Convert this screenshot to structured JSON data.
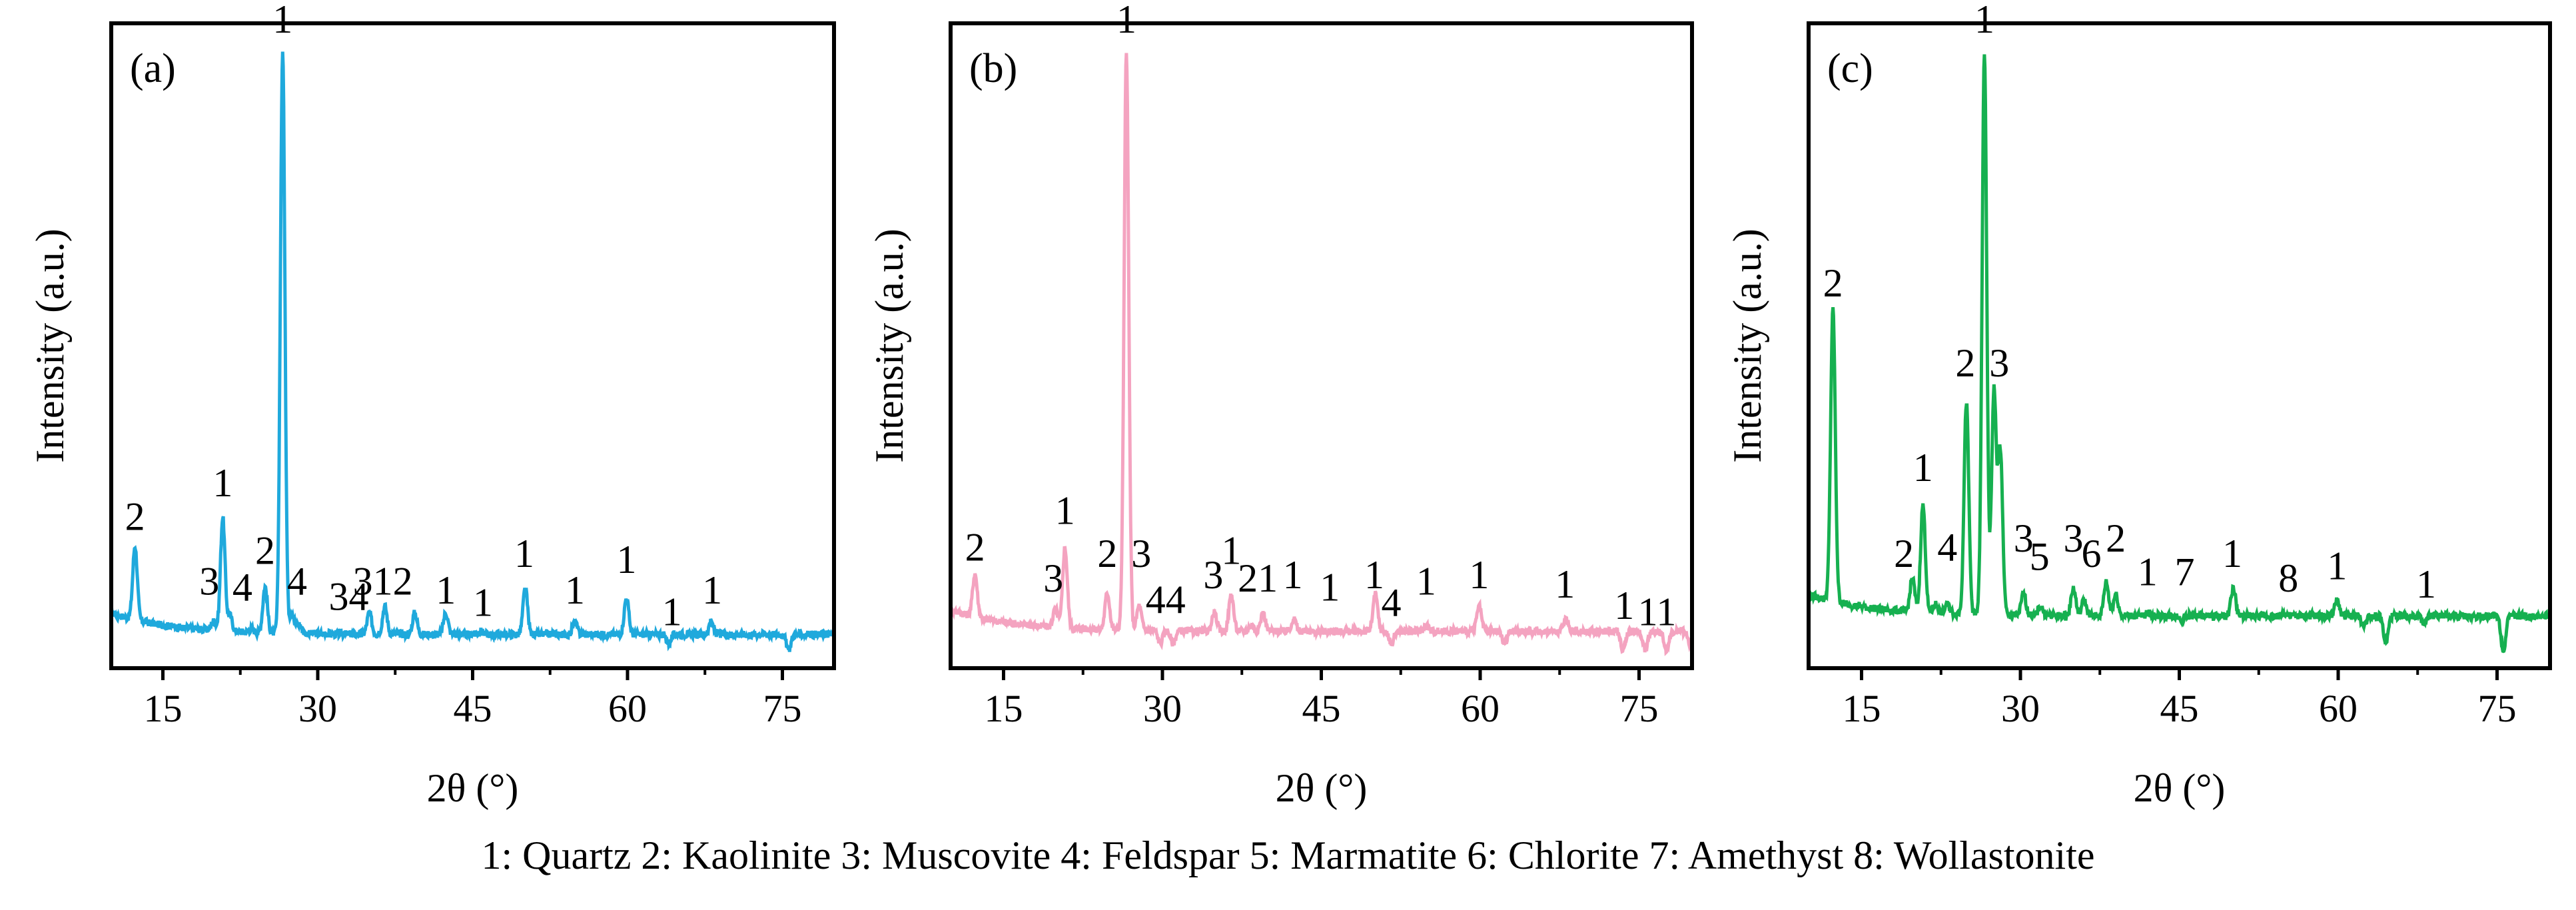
{
  "caption": "1: Quartz 2: Kaolinite 3: Muscovite 4: Feldspar 5: Marmatite 6: Chlorite 7: Amethyst 8: Wollastonite",
  "chart_data": [
    {
      "type": "line",
      "panel_label": "(a)",
      "xlabel": "2θ (°)",
      "ylabel": "Intensity (a.u.)",
      "xlim": [
        10,
        80
      ],
      "ylim": [
        0,
        1.05
      ],
      "xticks": [
        15,
        30,
        45,
        60,
        75
      ],
      "color": "#1fa9dc",
      "series": [
        {
          "name": "(a)",
          "baseline": 0.055,
          "peaks": [
            {
              "x": 12.3,
              "y": 0.175,
              "label": "2"
            },
            {
              "x": 19.9,
              "y": 0.07,
              "label": ""
            },
            {
              "x": 20.8,
              "y": 0.24,
              "label": "1"
            },
            {
              "x": 21.5,
              "y": 0.08,
              "label": "3"
            },
            {
              "x": 23.6,
              "y": 0.06,
              "label": "4"
            },
            {
              "x": 24.9,
              "y": 0.13,
              "label": "2"
            },
            {
              "x": 26.6,
              "y": 1.0,
              "label": "1"
            },
            {
              "x": 27.5,
              "y": 0.09,
              "label": "4"
            },
            {
              "x": 28.2,
              "y": 0.07,
              "label": ""
            },
            {
              "x": 35.0,
              "y": 0.09,
              "label": "3"
            },
            {
              "x": 36.5,
              "y": 0.1,
              "label": "1"
            },
            {
              "x": 39.4,
              "y": 0.09,
              "label": "2"
            },
            {
              "x": 42.4,
              "y": 0.09,
              "label": "1"
            },
            {
              "x": 45.8,
              "y": 0.06,
              "label": "1"
            },
            {
              "x": 50.1,
              "y": 0.13,
              "label": "1"
            },
            {
              "x": 54.9,
              "y": 0.075,
              "label": "1"
            },
            {
              "x": 59.9,
              "y": 0.115,
              "label": "1"
            },
            {
              "x": 64.0,
              "y": 0.04,
              "label": "1"
            },
            {
              "x": 68.1,
              "y": 0.075,
              "label": "1"
            },
            {
              "x": 75.6,
              "y": 0.03,
              "label": ""
            }
          ]
        }
      ],
      "annotations": [
        {
          "x": 12.3,
          "y": 0.225,
          "text": "2"
        },
        {
          "x": 20.8,
          "y": 0.28,
          "text": "1"
        },
        {
          "x": 19.5,
          "y": 0.12,
          "text": "3"
        },
        {
          "x": 22.7,
          "y": 0.11,
          "text": "4"
        },
        {
          "x": 24.9,
          "y": 0.17,
          "text": "2"
        },
        {
          "x": 26.6,
          "y": 1.035,
          "text": "1"
        },
        {
          "x": 28.0,
          "y": 0.12,
          "text": "4"
        },
        {
          "x": 33.0,
          "y": 0.095,
          "text": "34"
        },
        {
          "x": 36.3,
          "y": 0.12,
          "text": "312"
        },
        {
          "x": 42.4,
          "y": 0.105,
          "text": "1"
        },
        {
          "x": 46.0,
          "y": 0.085,
          "text": "1"
        },
        {
          "x": 50.0,
          "y": 0.165,
          "text": "1"
        },
        {
          "x": 54.9,
          "y": 0.105,
          "text": "1"
        },
        {
          "x": 59.9,
          "y": 0.155,
          "text": "1"
        },
        {
          "x": 64.3,
          "y": 0.07,
          "text": "1"
        },
        {
          "x": 68.2,
          "y": 0.105,
          "text": "1"
        }
      ]
    },
    {
      "type": "line",
      "panel_label": "(b)",
      "xlabel": "2θ (°)",
      "ylabel": "Intensity (a.u.)",
      "xlim": [
        10,
        80
      ],
      "ylim": [
        0,
        1.05
      ],
      "xticks": [
        15,
        30,
        45,
        60,
        75
      ],
      "color": "#f4a3c0",
      "series": [
        {
          "name": "(b)",
          "baseline": 0.06,
          "peaks": [
            {
              "x": 12.3,
              "y": 0.13,
              "label": "2"
            },
            {
              "x": 19.9,
              "y": 0.09,
              "label": "3"
            },
            {
              "x": 20.8,
              "y": 0.19,
              "label": "1"
            },
            {
              "x": 24.8,
              "y": 0.12,
              "label": "2"
            },
            {
              "x": 26.6,
              "y": 1.0,
              "label": "1"
            },
            {
              "x": 27.8,
              "y": 0.1,
              "label": "3"
            },
            {
              "x": 29.8,
              "y": 0.04,
              "label": "4"
            },
            {
              "x": 31.0,
              "y": 0.04,
              "label": "4"
            },
            {
              "x": 34.9,
              "y": 0.09,
              "label": "3"
            },
            {
              "x": 36.5,
              "y": 0.12,
              "label": "1"
            },
            {
              "x": 38.4,
              "y": 0.07,
              "label": "2"
            },
            {
              "x": 39.5,
              "y": 0.09,
              "label": "1"
            },
            {
              "x": 42.4,
              "y": 0.08,
              "label": "1"
            },
            {
              "x": 45.8,
              "y": 0.06,
              "label": "1"
            },
            {
              "x": 50.1,
              "y": 0.12,
              "label": "1"
            },
            {
              "x": 51.6,
              "y": 0.04,
              "label": "4"
            },
            {
              "x": 54.9,
              "y": 0.07,
              "label": "1"
            },
            {
              "x": 59.9,
              "y": 0.1,
              "label": "1"
            },
            {
              "x": 62.3,
              "y": 0.04,
              "label": ""
            },
            {
              "x": 68.1,
              "y": 0.08,
              "label": "1"
            },
            {
              "x": 73.5,
              "y": 0.03,
              "label": "1"
            },
            {
              "x": 75.6,
              "y": 0.03,
              "label": "1"
            },
            {
              "x": 77.6,
              "y": 0.03,
              "label": "1"
            },
            {
              "x": 79.8,
              "y": 0.04,
              "label": ""
            }
          ]
        }
      ],
      "annotations": [
        {
          "x": 12.3,
          "y": 0.175,
          "text": "2"
        },
        {
          "x": 19.7,
          "y": 0.125,
          "text": "3"
        },
        {
          "x": 20.8,
          "y": 0.235,
          "text": "1"
        },
        {
          "x": 24.8,
          "y": 0.165,
          "text": "2"
        },
        {
          "x": 26.6,
          "y": 1.035,
          "text": "1"
        },
        {
          "x": 28.0,
          "y": 0.165,
          "text": "3"
        },
        {
          "x": 30.3,
          "y": 0.09,
          "text": "44"
        },
        {
          "x": 34.8,
          "y": 0.13,
          "text": "3"
        },
        {
          "x": 36.5,
          "y": 0.17,
          "text": "1"
        },
        {
          "x": 39.0,
          "y": 0.125,
          "text": "21"
        },
        {
          "x": 42.3,
          "y": 0.13,
          "text": "1"
        },
        {
          "x": 45.8,
          "y": 0.11,
          "text": "1"
        },
        {
          "x": 50.0,
          "y": 0.13,
          "text": "1"
        },
        {
          "x": 51.6,
          "y": 0.085,
          "text": "4"
        },
        {
          "x": 54.9,
          "y": 0.12,
          "text": "1"
        },
        {
          "x": 59.9,
          "y": 0.13,
          "text": "1"
        },
        {
          "x": 68.0,
          "y": 0.115,
          "text": "1"
        },
        {
          "x": 73.6,
          "y": 0.08,
          "text": "1"
        },
        {
          "x": 76.7,
          "y": 0.07,
          "text": "11"
        }
      ]
    },
    {
      "type": "line",
      "panel_label": "(c)",
      "xlabel": "2θ (°)",
      "ylabel": "Intensity (a.u.)",
      "xlim": [
        10,
        80
      ],
      "ylim": [
        0,
        1.05
      ],
      "xticks": [
        15,
        30,
        45,
        60,
        75
      ],
      "color": "#16b050",
      "series": [
        {
          "name": "(c)",
          "baseline": 0.085,
          "peaks": [
            {
              "x": 12.3,
              "y": 0.56,
              "label": "2"
            },
            {
              "x": 19.8,
              "y": 0.14,
              "label": "2"
            },
            {
              "x": 20.8,
              "y": 0.26,
              "label": "1"
            },
            {
              "x": 22.0,
              "y": 0.1,
              "label": ""
            },
            {
              "x": 23.1,
              "y": 0.1,
              "label": "4"
            },
            {
              "x": 24.9,
              "y": 0.43,
              "label": "2"
            },
            {
              "x": 26.6,
              "y": 1.0,
              "label": "1"
            },
            {
              "x": 27.5,
              "y": 0.45,
              "label": "3"
            },
            {
              "x": 28.1,
              "y": 0.35,
              "label": ""
            },
            {
              "x": 30.3,
              "y": 0.12,
              "label": "3"
            },
            {
              "x": 31.9,
              "y": 0.1,
              "label": "5"
            },
            {
              "x": 35.0,
              "y": 0.13,
              "label": "3"
            },
            {
              "x": 36.0,
              "y": 0.11,
              "label": "6"
            },
            {
              "x": 38.1,
              "y": 0.14,
              "label": "2"
            },
            {
              "x": 39.0,
              "y": 0.12,
              "label": ""
            },
            {
              "x": 42.1,
              "y": 0.09,
              "label": "1"
            },
            {
              "x": 45.2,
              "y": 0.08,
              "label": "7"
            },
            {
              "x": 50.1,
              "y": 0.13,
              "label": "1"
            },
            {
              "x": 54.9,
              "y": 0.09,
              "label": "8"
            },
            {
              "x": 59.9,
              "y": 0.11,
              "label": "1"
            },
            {
              "x": 62.4,
              "y": 0.07,
              "label": ""
            },
            {
              "x": 64.5,
              "y": 0.04,
              "label": ""
            },
            {
              "x": 68.1,
              "y": 0.07,
              "label": "1"
            },
            {
              "x": 75.6,
              "y": 0.03,
              "label": ""
            }
          ]
        }
      ],
      "annotations": [
        {
          "x": 12.3,
          "y": 0.605,
          "text": "2"
        },
        {
          "x": 19.0,
          "y": 0.165,
          "text": "2"
        },
        {
          "x": 20.8,
          "y": 0.305,
          "text": "1"
        },
        {
          "x": 23.1,
          "y": 0.175,
          "text": "4"
        },
        {
          "x": 24.8,
          "y": 0.475,
          "text": "2"
        },
        {
          "x": 26.6,
          "y": 1.035,
          "text": "1"
        },
        {
          "x": 28.0,
          "y": 0.475,
          "text": "3"
        },
        {
          "x": 30.3,
          "y": 0.19,
          "text": "3"
        },
        {
          "x": 31.8,
          "y": 0.16,
          "text": "5"
        },
        {
          "x": 35.0,
          "y": 0.19,
          "text": "3"
        },
        {
          "x": 36.7,
          "y": 0.165,
          "text": "6"
        },
        {
          "x": 39.0,
          "y": 0.19,
          "text": "2"
        },
        {
          "x": 42.0,
          "y": 0.135,
          "text": "1"
        },
        {
          "x": 45.5,
          "y": 0.135,
          "text": "7"
        },
        {
          "x": 50.0,
          "y": 0.165,
          "text": "1"
        },
        {
          "x": 55.3,
          "y": 0.125,
          "text": "8"
        },
        {
          "x": 59.9,
          "y": 0.145,
          "text": "1"
        },
        {
          "x": 68.3,
          "y": 0.115,
          "text": "1"
        }
      ]
    }
  ]
}
